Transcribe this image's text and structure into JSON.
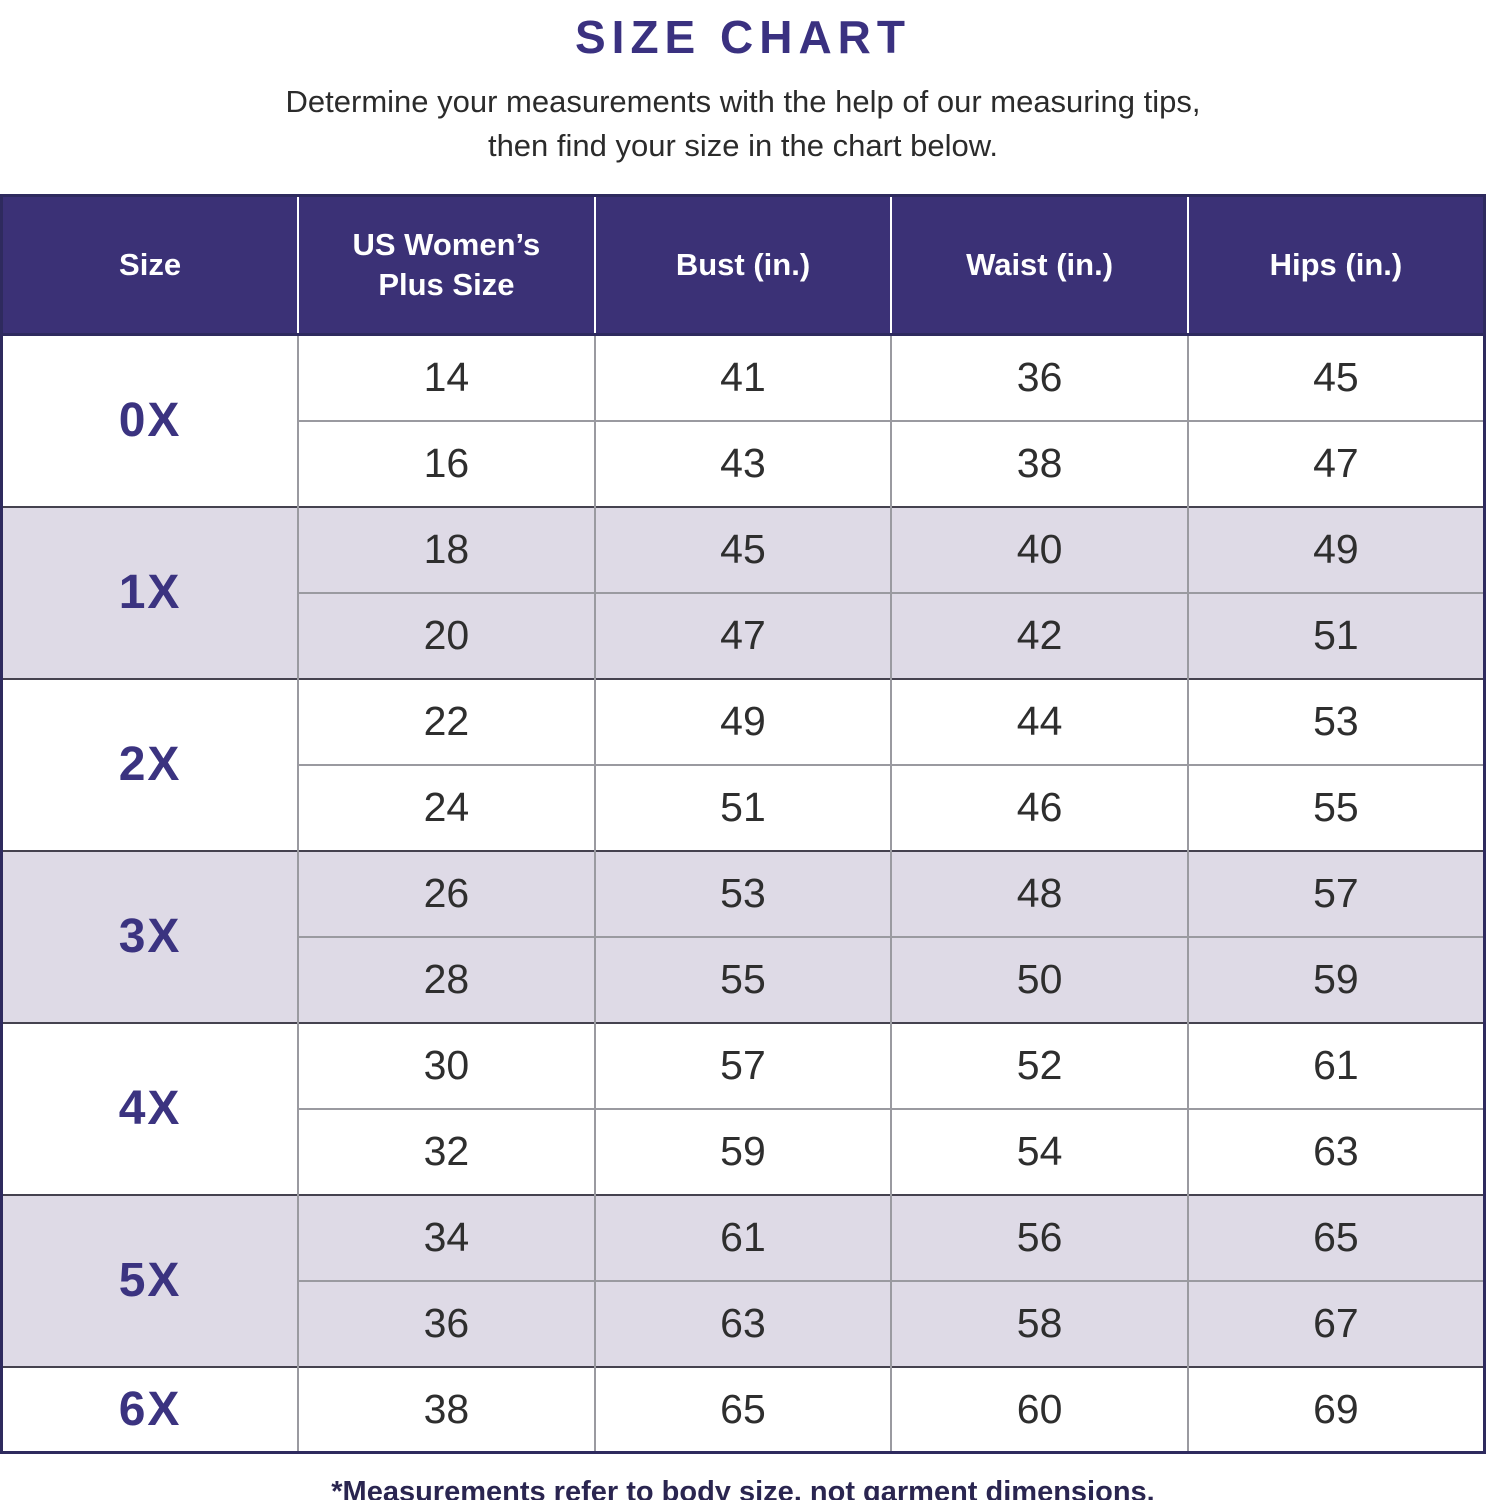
{
  "page": {
    "title": "SIZE CHART",
    "subtitle_line1": "Determine your measurements with the help of our measuring tips,",
    "subtitle_line2": "then find your size in the chart below.",
    "footnote": "*Measurements refer to body size, not garment dimensions."
  },
  "colors": {
    "header_bg": "#3b3176",
    "title_text": "#3a3180",
    "row_alt_bg": "#dedae6",
    "size_label_text": "#3b3380",
    "grid_line": "#9a9aa0",
    "group_separator": "#45424f",
    "outer_border": "#2e2a5e",
    "body_text": "#2e2e2e",
    "footnote_text": "#2a2550"
  },
  "chart_data": {
    "type": "table",
    "title": "SIZE CHART",
    "columns": [
      "Size",
      "US Women’s Plus Size",
      "Bust (in.)",
      "Waist (in.)",
      "Hips (in.)"
    ],
    "rows": [
      [
        "0X",
        14,
        41,
        36,
        45
      ],
      [
        "0X",
        16,
        43,
        38,
        47
      ],
      [
        "1X",
        18,
        45,
        40,
        49
      ],
      [
        "1X",
        20,
        47,
        42,
        51
      ],
      [
        "2X",
        22,
        49,
        44,
        53
      ],
      [
        "2X",
        24,
        51,
        46,
        55
      ],
      [
        "3X",
        26,
        53,
        48,
        57
      ],
      [
        "3X",
        28,
        55,
        50,
        59
      ],
      [
        "4X",
        30,
        57,
        52,
        61
      ],
      [
        "4X",
        32,
        59,
        54,
        63
      ],
      [
        "5X",
        34,
        61,
        56,
        65
      ],
      [
        "5X",
        36,
        63,
        58,
        67
      ],
      [
        "6X",
        38,
        65,
        60,
        69
      ]
    ],
    "layout": {
      "zebra_groups": true,
      "group_by_first_column": true,
      "single_row_groups_bg": "white"
    }
  }
}
